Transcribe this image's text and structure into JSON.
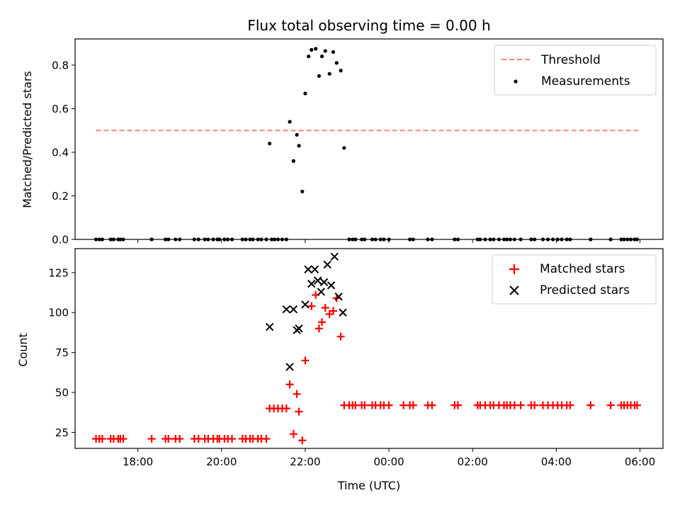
{
  "figure": {
    "title": "Flux total observing time = 0.00 h"
  },
  "chart_data": [
    {
      "type": "scatter",
      "ylabel": "Matched/Predicted stars",
      "ylim": [
        0.0,
        0.92
      ],
      "yticks": [
        0.0,
        0.2,
        0.4,
        0.6,
        0.8
      ],
      "ytick_labels": [
        "0.0",
        "0.2",
        "0.4",
        "0.6",
        "0.8"
      ],
      "xlim_hours": [
        16.5,
        30.55
      ],
      "grid": false,
      "legend_position": "top-right",
      "threshold": {
        "name": "Threshold",
        "value": 0.5,
        "x_range_hours": [
          17.0,
          29.95
        ],
        "color": "#ff7f7f",
        "style": "dashed"
      },
      "series": [
        {
          "name": "Measurements",
          "color": "#000000",
          "marker": "dot",
          "x_hours": [
            17.0,
            17.08,
            17.15,
            17.35,
            17.42,
            17.53,
            17.58,
            17.65,
            18.33,
            18.66,
            18.73,
            18.9,
            19.0,
            19.35,
            19.45,
            19.6,
            19.68,
            19.8,
            19.9,
            19.95,
            20.07,
            20.15,
            20.25,
            20.5,
            20.58,
            20.68,
            20.75,
            20.87,
            20.95,
            21.07,
            21.2,
            21.27,
            21.35,
            21.45,
            21.55,
            23.05,
            23.13,
            23.2,
            23.35,
            23.42,
            23.6,
            23.68,
            23.8,
            23.88,
            24.0,
            24.5,
            24.58,
            24.93,
            25.03,
            25.57,
            25.65,
            26.12,
            26.18,
            26.3,
            26.42,
            26.5,
            26.63,
            26.75,
            26.82,
            26.9,
            27.0,
            27.15,
            27.4,
            27.48,
            27.68,
            27.8,
            27.92,
            28.03,
            28.13,
            28.25,
            28.33,
            28.82,
            29.3,
            29.55,
            29.62,
            29.7,
            29.78,
            29.87,
            29.93,
            21.15,
            21.63,
            21.72,
            21.8,
            21.85,
            21.93,
            22.0,
            22.08,
            22.15,
            22.25,
            22.33,
            22.4,
            22.48,
            22.58,
            22.67,
            22.75,
            22.85,
            22.93
          ],
          "y": [
            0,
            0,
            0,
            0,
            0,
            0,
            0,
            0,
            0,
            0,
            0,
            0,
            0,
            0,
            0,
            0,
            0,
            0,
            0,
            0,
            0,
            0,
            0,
            0,
            0,
            0,
            0,
            0,
            0,
            0,
            0,
            0,
            0,
            0,
            0,
            0,
            0,
            0,
            0,
            0,
            0,
            0,
            0,
            0,
            0,
            0,
            0,
            0,
            0,
            0,
            0,
            0,
            0,
            0,
            0,
            0,
            0,
            0,
            0,
            0,
            0,
            0,
            0,
            0,
            0,
            0,
            0,
            0,
            0,
            0,
            0,
            0,
            0,
            0,
            0,
            0,
            0,
            0,
            0,
            0.44,
            0.54,
            0.36,
            0.48,
            0.43,
            0.22,
            0.67,
            0.84,
            0.87,
            0.875,
            0.75,
            0.84,
            0.865,
            0.76,
            0.86,
            0.81,
            0.775,
            0.42
          ]
        }
      ]
    },
    {
      "type": "scatter",
      "xlabel": "Time (UTC)",
      "ylabel": "Count",
      "ylim": [
        15,
        140
      ],
      "yticks": [
        25,
        50,
        75,
        100,
        125
      ],
      "ytick_labels": [
        "25",
        "50",
        "75",
        "100",
        "125"
      ],
      "xlim_hours": [
        16.5,
        30.55
      ],
      "xticks_hours": [
        18,
        20,
        22,
        24,
        26,
        28,
        30
      ],
      "xtick_labels": [
        "18:00",
        "20:00",
        "22:00",
        "00:00",
        "02:00",
        "04:00",
        "06:00"
      ],
      "grid": false,
      "legend_position": "top-right",
      "series": [
        {
          "name": "Matched stars",
          "color": "#ff0000",
          "marker": "plus",
          "x_hours": [
            17.0,
            17.08,
            17.15,
            17.35,
            17.42,
            17.53,
            17.58,
            17.65,
            18.33,
            18.66,
            18.73,
            18.9,
            19.0,
            19.35,
            19.45,
            19.6,
            19.68,
            19.8,
            19.9,
            19.95,
            20.07,
            20.15,
            20.25,
            20.5,
            20.58,
            20.68,
            20.75,
            20.87,
            20.95,
            21.07,
            21.15,
            21.25,
            21.35,
            21.45,
            21.55,
            21.63,
            21.72,
            21.8,
            21.85,
            21.93,
            22.0,
            22.15,
            22.25,
            22.33,
            22.4,
            22.48,
            22.58,
            22.67,
            22.75,
            22.85,
            22.93,
            23.05,
            23.13,
            23.2,
            23.35,
            23.42,
            23.6,
            23.68,
            23.8,
            23.88,
            24.0,
            24.35,
            24.5,
            24.58,
            24.93,
            25.03,
            25.57,
            25.65,
            26.12,
            26.18,
            26.3,
            26.42,
            26.5,
            26.63,
            26.75,
            26.82,
            26.9,
            27.0,
            27.15,
            27.4,
            27.48,
            27.68,
            27.8,
            27.92,
            28.03,
            28.13,
            28.25,
            28.33,
            28.82,
            29.3,
            29.55,
            29.62,
            29.7,
            29.78,
            29.87,
            29.93
          ],
          "y": [
            21,
            21,
            21,
            21,
            21,
            21,
            21,
            21,
            21,
            21,
            21,
            21,
            21,
            21,
            21,
            21,
            21,
            21,
            21,
            21,
            21,
            21,
            21,
            21,
            21,
            21,
            21,
            21,
            21,
            21,
            40,
            40,
            40,
            40,
            40,
            55,
            24,
            49,
            38,
            20,
            70,
            104,
            111,
            90,
            94,
            103,
            99,
            101,
            109,
            85,
            42,
            42,
            42,
            42,
            42,
            42,
            42,
            42,
            42,
            42,
            42,
            42,
            42,
            42,
            42,
            42,
            42,
            42,
            42,
            42,
            42,
            42,
            42,
            42,
            42,
            42,
            42,
            42,
            42,
            42,
            42,
            42,
            42,
            42,
            42,
            42,
            42,
            42,
            42,
            42,
            42,
            42,
            42,
            42,
            42,
            42
          ]
        },
        {
          "name": "Predicted stars",
          "color": "#000000",
          "marker": "x",
          "x_hours": [
            21.15,
            21.55,
            21.63,
            21.72,
            21.8,
            21.85,
            22.0,
            22.07,
            22.15,
            22.23,
            22.3,
            22.38,
            22.45,
            22.53,
            22.62,
            22.7,
            22.8,
            22.9
          ],
          "y": [
            91,
            102,
            66,
            102,
            89,
            90,
            105,
            127,
            118,
            127,
            120,
            113,
            119,
            130,
            117,
            135,
            110,
            100
          ]
        }
      ]
    }
  ]
}
